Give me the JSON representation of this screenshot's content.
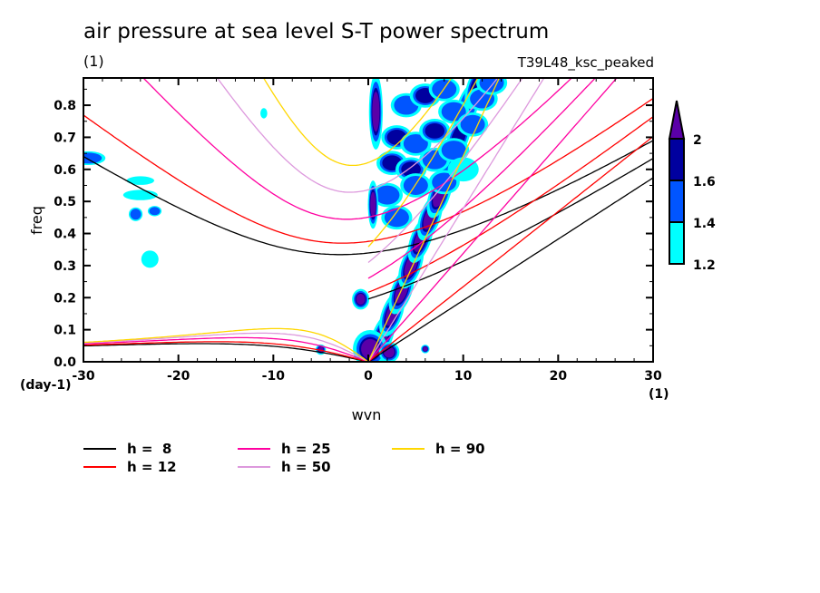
{
  "header": {
    "title": "air pressure at sea level S-T power spectrum",
    "units": "(1)",
    "run_name": "T39L48_ksc_peaked"
  },
  "chart_data": {
    "type": "heatmap",
    "title": "air pressure at sea level S-T power spectrum",
    "xlabel": "wvn",
    "ylabel": "freq",
    "x_units": "(1)",
    "y_units": "(day-1)",
    "xlim": [
      -30,
      30
    ],
    "ylim": [
      0,
      0.885
    ],
    "x_ticks": [
      "-30",
      "-20",
      "-10",
      "0",
      "10",
      "20",
      "30"
    ],
    "x_tick_values": [
      -30,
      -20,
      -10,
      0,
      10,
      20,
      30
    ],
    "y_ticks": [
      "0.0",
      "0.1",
      "0.2",
      "0.3",
      "0.4",
      "0.5",
      "0.6",
      "0.7",
      "0.8"
    ],
    "y_tick_values": [
      0,
      0.1,
      0.2,
      0.3,
      0.4,
      0.5,
      0.6,
      0.7,
      0.8
    ],
    "colorbar": {
      "levels": [
        1.2,
        1.4,
        1.6,
        2
      ],
      "labels": [
        "1.2",
        "1.4",
        "1.6",
        "2"
      ],
      "colors": [
        "#00ffff",
        "#0055ff",
        "#00009f",
        "#5a00a8"
      ],
      "extend": "max"
    },
    "contour_features": [
      {
        "name": "kelvin-ridge",
        "points": [
          [
            0.5,
            0.02
          ],
          [
            1.5,
            0.08
          ],
          [
            2.5,
            0.15
          ],
          [
            3.5,
            0.22
          ],
          [
            4.5,
            0.3
          ],
          [
            5.5,
            0.38
          ],
          [
            6.5,
            0.45
          ],
          [
            7.5,
            0.52
          ],
          [
            8.5,
            0.6
          ],
          [
            9.5,
            0.7
          ],
          [
            10.5,
            0.8
          ],
          [
            11.5,
            0.86
          ]
        ],
        "level": 2
      },
      {
        "name": "zero-blob",
        "points": [
          [
            0.5,
            0.05
          ]
        ],
        "level": 2
      },
      {
        "name": "high-freq-blob",
        "points": [
          [
            0.8,
            0.76
          ]
        ],
        "level": 2
      },
      {
        "name": "midfreq-blob",
        "points": [
          [
            0.5,
            0.5
          ]
        ],
        "level": 2
      },
      {
        "name": "small-blob",
        "points": [
          [
            -0.8,
            0.195
          ]
        ],
        "level": 2
      },
      {
        "name": "west-patch",
        "points": [
          [
            -29.5,
            0.635
          ]
        ],
        "level": 1.6
      }
    ],
    "series": [
      {
        "name": "h =  8",
        "h": 8,
        "color": "#000000"
      },
      {
        "name": "h = 12",
        "h": 12,
        "color": "#ff0000"
      },
      {
        "name": "h = 25",
        "h": 25,
        "color": "#ff00a0"
      },
      {
        "name": "h = 50",
        "h": 50,
        "color": "#dd99dd"
      },
      {
        "name": "h = 90",
        "h": 90,
        "color": "#ffd700"
      }
    ],
    "legend_position": "bottom-left"
  },
  "legend": [
    {
      "label": "h =  8",
      "color": "#000000"
    },
    {
      "label": "h = 12",
      "color": "#ff0000"
    },
    {
      "label": "h = 25",
      "color": "#ff00a0"
    },
    {
      "label": "h = 50",
      "color": "#dd99dd"
    },
    {
      "label": "h = 90",
      "color": "#ffd700"
    }
  ]
}
